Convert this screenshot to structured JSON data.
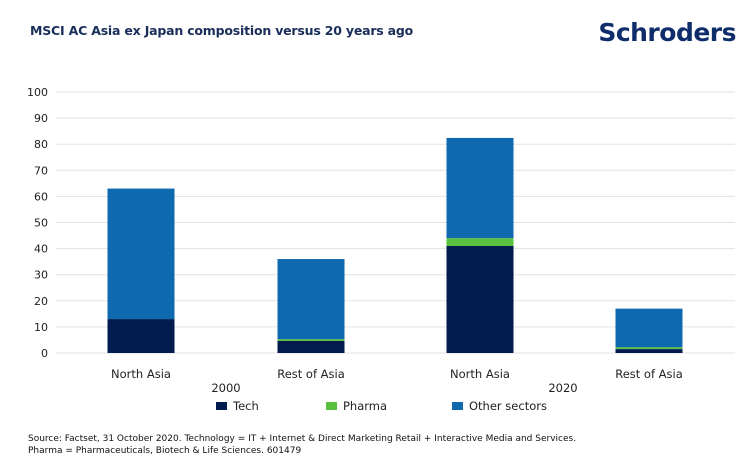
{
  "header": {
    "title": "MSCI AC Asia ex Japan composition versus 20 years ago",
    "logo": "Schroders"
  },
  "colors": {
    "Tech": "#021b4f",
    "Pharma": "#5abf3c",
    "Other sectors": "#0f69ae",
    "grid": "#e3e3e3",
    "title": "#1a2e5a"
  },
  "chart_data": {
    "type": "bar",
    "stacked": true,
    "title": "MSCI AC Asia ex Japan composition versus 20 years ago",
    "xlabel": "",
    "ylabel": "",
    "ylim": [
      0,
      100
    ],
    "yticks": [
      0,
      10,
      20,
      30,
      40,
      50,
      60,
      70,
      80,
      90,
      100
    ],
    "grid": true,
    "categories": [
      "North Asia",
      "Rest of Asia",
      "North Asia",
      "Rest of Asia"
    ],
    "groups": [
      {
        "label": "2000",
        "categories": [
          0,
          1
        ]
      },
      {
        "label": "2020",
        "categories": [
          2,
          3
        ]
      }
    ],
    "series": [
      {
        "name": "Tech",
        "values": [
          13,
          4.6,
          41,
          1.5
        ]
      },
      {
        "name": "Pharma",
        "values": [
          0,
          0.7,
          3,
          0.7
        ]
      },
      {
        "name": "Other sectors",
        "values": [
          50,
          30.7,
          38.4,
          14.8
        ]
      }
    ],
    "legend": {
      "position": "bottom",
      "entries": [
        "Tech",
        "Pharma",
        "Other sectors"
      ]
    }
  },
  "footnote": {
    "line1": "Source: Factset, 31 October 2020. Technology = IT + Internet &  Direct Marketing Retail + Interactive Media and Services.",
    "line2": "Pharma = Pharmaceuticals, Biotech & Life Sciences. 601479"
  }
}
